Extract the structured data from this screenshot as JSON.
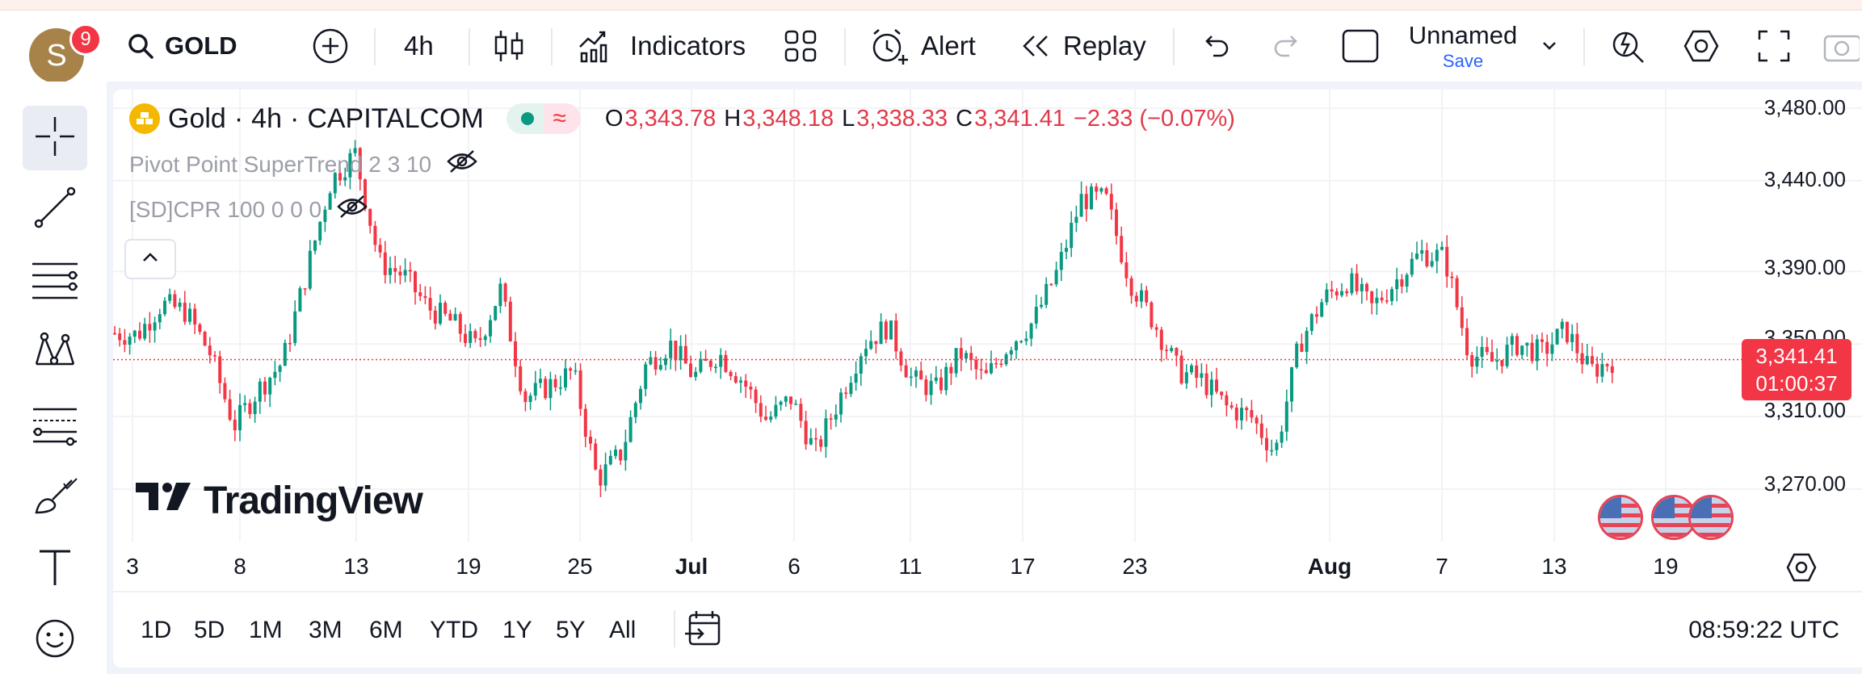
{
  "user": {
    "avatar_letter": "S",
    "notifications": "9"
  },
  "toolbar": {
    "symbol": "GOLD",
    "interval": "4h",
    "indicators_label": "Indicators",
    "alert_label": "Alert",
    "replay_label": "Replay",
    "layout_name": "Unnamed",
    "save_label": "Save"
  },
  "legend": {
    "name": "Gold",
    "interval": "4h",
    "exchange": "CAPITALCOM",
    "open_key": "O",
    "open": "3,343.78",
    "high_key": "H",
    "high": "3,348.18",
    "low_key": "L",
    "low": "3,338.33",
    "close_key": "C",
    "close": "3,341.41",
    "change": "−2.33 (−0.07%)"
  },
  "indicators": [
    {
      "label": "Pivot Point SuperTrend 2 3 10"
    },
    {
      "label": "[SD]CPR 100 0 0 0"
    }
  ],
  "price_axis": {
    "labels": [
      "3,480.00",
      "3,440.00",
      "3,390.00",
      "3,350.00",
      "3,310.00",
      "3,270.00"
    ],
    "last_price": "3,341.41",
    "countdown": "01:00:37"
  },
  "time_axis": {
    "labels": [
      "3",
      "8",
      "13",
      "19",
      "25",
      "Jul",
      "6",
      "11",
      "17",
      "23",
      "Aug",
      "7",
      "13",
      "19"
    ],
    "bold": [
      "Jul",
      "Aug"
    ]
  },
  "watermark": "TradingView",
  "ranges": [
    "1D",
    "5D",
    "1M",
    "3M",
    "6M",
    "YTD",
    "1Y",
    "5Y",
    "All"
  ],
  "clock": "08:59:22 UTC",
  "colors": {
    "up": "#089981",
    "down": "#f23645",
    "accent": "#2962ff"
  },
  "chart_data": {
    "type": "candlestick",
    "title": "Gold · 4h · CAPITALCOM",
    "y_ticks": [
      3270,
      3310,
      3350,
      3390,
      3440,
      3480
    ],
    "x_ticks": [
      "3",
      "8",
      "13",
      "19",
      "25",
      "Jul",
      "6",
      "11",
      "17",
      "23",
      "Aug",
      "7",
      "13",
      "19"
    ],
    "last_close": 3341.41,
    "close_path": [
      {
        "x": "Jun 2",
        "close": 3356
      },
      {
        "x": "Jun 3",
        "close": 3355
      },
      {
        "x": "Jun 4",
        "close": 3372
      },
      {
        "x": "Jun 5",
        "close": 3368
      },
      {
        "x": "Jun 6",
        "close": 3345
      },
      {
        "x": "Jun 8",
        "close": 3305
      },
      {
        "x": "Jun 10",
        "close": 3325
      },
      {
        "x": "Jun 11",
        "close": 3340
      },
      {
        "x": "Jun 12",
        "close": 3390
      },
      {
        "x": "Jun 13",
        "close": 3440
      },
      {
        "x": "Jun 15",
        "close": 3455
      },
      {
        "x": "Jun 16",
        "close": 3395
      },
      {
        "x": "Jun 18",
        "close": 3388
      },
      {
        "x": "Jun 19",
        "close": 3370
      },
      {
        "x": "Jun 20",
        "close": 3362
      },
      {
        "x": "Jun 22",
        "close": 3348
      },
      {
        "x": "Jun 23",
        "close": 3380
      },
      {
        "x": "Jun 24",
        "close": 3320
      },
      {
        "x": "Jun 26",
        "close": 3327
      },
      {
        "x": "Jun 27",
        "close": 3335
      },
      {
        "x": "Jun 29",
        "close": 3275
      },
      {
        "x": "Jun 30",
        "close": 3290
      },
      {
        "x": "Jul 1",
        "close": 3338
      },
      {
        "x": "Jul 2",
        "close": 3350
      },
      {
        "x": "Jul 3",
        "close": 3332
      },
      {
        "x": "Jul 5",
        "close": 3345
      },
      {
        "x": "Jul 6",
        "close": 3330
      },
      {
        "x": "Jul 7",
        "close": 3308
      },
      {
        "x": "Jul 8",
        "close": 3320
      },
      {
        "x": "Jul 9",
        "close": 3290
      },
      {
        "x": "Jul 10",
        "close": 3320
      },
      {
        "x": "Jul 11",
        "close": 3350
      },
      {
        "x": "Jul 13",
        "close": 3360
      },
      {
        "x": "Jul 14",
        "close": 3330
      },
      {
        "x": "Jul 15",
        "close": 3325
      },
      {
        "x": "Jul 16",
        "close": 3345
      },
      {
        "x": "Jul 17",
        "close": 3330
      },
      {
        "x": "Jul 18",
        "close": 3350
      },
      {
        "x": "Jul 19",
        "close": 3362
      },
      {
        "x": "Jul 21",
        "close": 3390
      },
      {
        "x": "Jul 22",
        "close": 3430
      },
      {
        "x": "Jul 23",
        "close": 3430
      },
      {
        "x": "Jul 24",
        "close": 3385
      },
      {
        "x": "Jul 25",
        "close": 3362
      },
      {
        "x": "Jul 27",
        "close": 3335
      },
      {
        "x": "Jul 28",
        "close": 3330
      },
      {
        "x": "Jul 29",
        "close": 3315
      },
      {
        "x": "Jul 30",
        "close": 3310
      },
      {
        "x": "Jul 31",
        "close": 3290
      },
      {
        "x": "Aug 1",
        "close": 3350
      },
      {
        "x": "Aug 2",
        "close": 3375
      },
      {
        "x": "Aug 3",
        "close": 3385
      },
      {
        "x": "Aug 5",
        "close": 3370
      },
      {
        "x": "Aug 6",
        "close": 3385
      },
      {
        "x": "Aug 7",
        "close": 3400
      },
      {
        "x": "Aug 8",
        "close": 3398
      },
      {
        "x": "Aug 10",
        "close": 3345
      },
      {
        "x": "Aug 11",
        "close": 3340
      },
      {
        "x": "Aug 12",
        "close": 3350
      },
      {
        "x": "Aug 13",
        "close": 3345
      },
      {
        "x": "Aug 14",
        "close": 3358
      },
      {
        "x": "Aug 15",
        "close": 3335
      },
      {
        "x": "Aug 16",
        "close": 3341.41
      }
    ]
  }
}
